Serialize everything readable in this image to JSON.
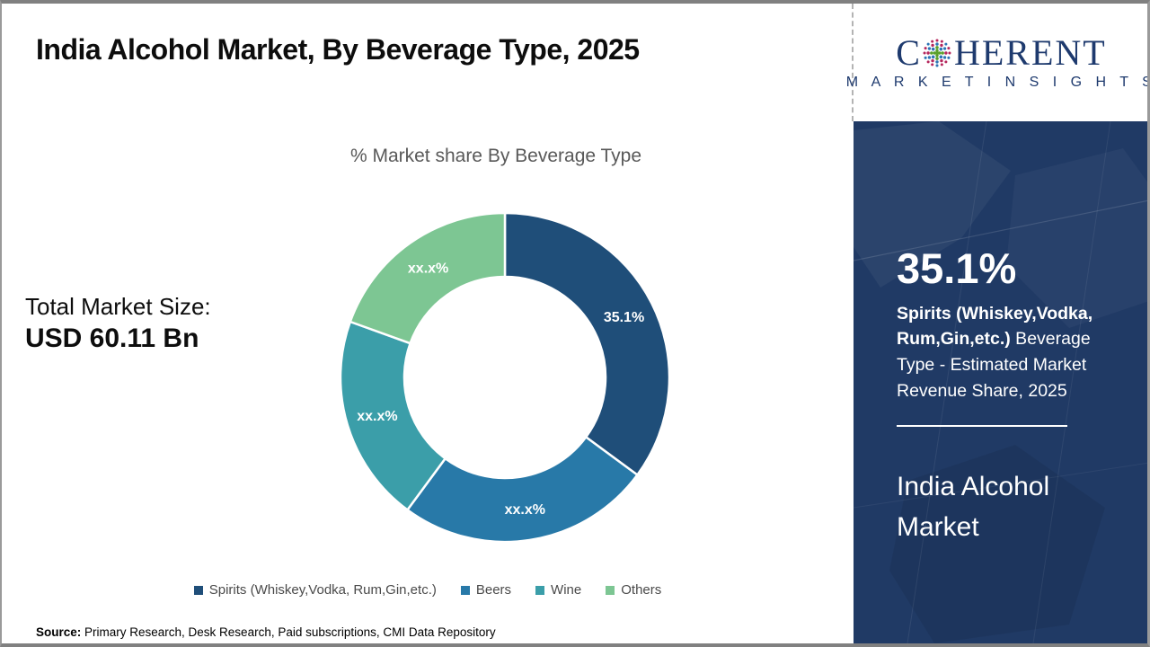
{
  "header": {
    "title": "India Alcohol Market, By Beverage Type, 2025"
  },
  "logo": {
    "c": "C",
    "rest": "HERENT",
    "subtitle": "M A R K E T   I N S I G H T S",
    "color": "#1e3a6e",
    "globe_dot_colors": [
      "#b5275d",
      "#2e75b6",
      "#5aa02c"
    ]
  },
  "chart_data": {
    "type": "pie",
    "subtype": "donut",
    "title": "% Market share By Beverage Type",
    "categories": [
      "Spirits (Whiskey,Vodka, Rum,Gin,etc.)",
      "Beers",
      "Wine",
      "Others"
    ],
    "values": [
      35.1,
      25.0,
      20.4,
      19.5
    ],
    "value_labels": [
      "35.1%",
      "xx.x%",
      "xx.x%",
      "xx.x%"
    ],
    "colors": [
      "#1F4E79",
      "#2879A8",
      "#3B9EA9",
      "#7DC693"
    ],
    "legend_position": "bottom",
    "start_angle_deg": 0,
    "direction": "clockwise",
    "inner_radius_ratio": 0.61
  },
  "total_market": {
    "label": "Total Market Size:",
    "value": "USD 60.11 Bn"
  },
  "source": {
    "label": "Source:",
    "text": " Primary Research, Desk Research, Paid subscriptions, CMI Data Repository"
  },
  "sidebar": {
    "background": "#203a65",
    "highlight_value": "35.1%",
    "highlight_bold": "Spirits (Whiskey,Vodka, Rum,Gin,etc.)",
    "highlight_rest": " Beverage Type - Estimated Market Revenue Share, 2025",
    "market_name": "India Alcohol Market"
  }
}
